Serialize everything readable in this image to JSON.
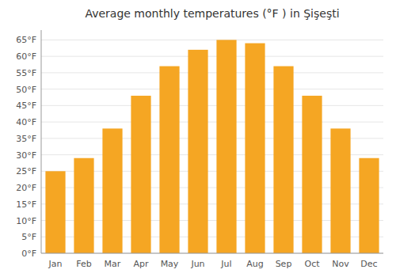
{
  "chart_data": {
    "type": "bar",
    "title": "Average monthly temperatures (°F ) in Şişeşti",
    "categories": [
      "Jan",
      "Feb",
      "Mar",
      "Apr",
      "May",
      "Jun",
      "Jul",
      "Aug",
      "Sep",
      "Oct",
      "Nov",
      "Dec"
    ],
    "values": [
      25,
      29,
      38,
      48,
      57,
      62,
      65,
      64,
      57,
      48,
      38,
      29
    ],
    "color": "#F5A623",
    "ylim": [
      0,
      68
    ],
    "yticks": [
      {
        "value": 0,
        "label": "0°F"
      },
      {
        "value": 5,
        "label": "5°F"
      },
      {
        "value": 10,
        "label": "10°F"
      },
      {
        "value": 15,
        "label": "15°F"
      },
      {
        "value": 20,
        "label": "20°F"
      },
      {
        "value": 25,
        "label": "25°F"
      },
      {
        "value": 30,
        "label": "30°F"
      },
      {
        "value": 35,
        "label": "35°F"
      },
      {
        "value": 40,
        "label": "40°F"
      },
      {
        "value": 45,
        "label": "45°F"
      },
      {
        "value": 50,
        "label": "50°F"
      },
      {
        "value": 55,
        "label": "55°F"
      },
      {
        "value": 60,
        "label": "60°F"
      },
      {
        "value": 65,
        "label": "65°F"
      }
    ],
    "grid": true
  }
}
